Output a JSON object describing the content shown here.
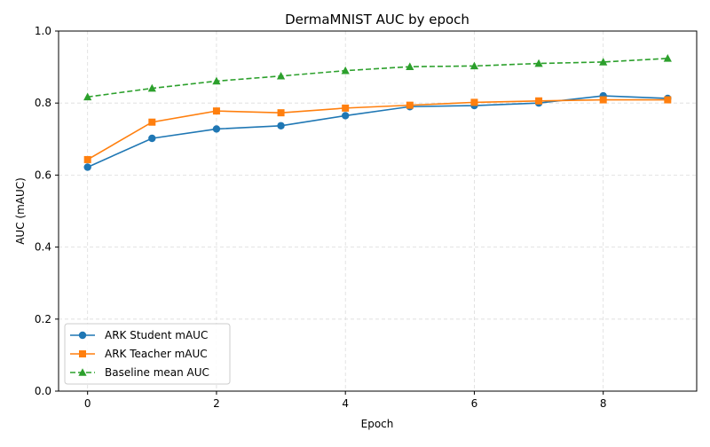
{
  "chart_data": {
    "type": "line",
    "title": "DermaMNIST AUC by epoch",
    "xlabel": "Epoch",
    "ylabel": "AUC (mAUC)",
    "x": [
      0,
      1,
      2,
      3,
      4,
      5,
      6,
      7,
      8,
      9
    ],
    "xlim": [
      -0.45,
      9.45
    ],
    "ylim": [
      0.0,
      1.0
    ],
    "xticks": [
      0,
      2,
      4,
      6,
      8
    ],
    "yticks": [
      0.0,
      0.2,
      0.4,
      0.6,
      0.8,
      1.0
    ],
    "xtick_labels": [
      "0",
      "2",
      "4",
      "6",
      "8"
    ],
    "ytick_labels": [
      "0.0",
      "0.2",
      "0.4",
      "0.6",
      "0.8",
      "1.0"
    ],
    "grid": true,
    "legend_position": "lower-left",
    "series": [
      {
        "name": "ARK Student mAUC",
        "color": "#1f77b4",
        "marker": "circle",
        "line_style": "solid",
        "values": [
          0.622,
          0.702,
          0.728,
          0.737,
          0.765,
          0.79,
          0.793,
          0.8,
          0.82,
          0.813
        ]
      },
      {
        "name": "ARK Teacher mAUC",
        "color": "#ff7f0e",
        "marker": "square",
        "line_style": "solid",
        "values": [
          0.643,
          0.747,
          0.778,
          0.773,
          0.786,
          0.794,
          0.802,
          0.806,
          0.809,
          0.809
        ]
      },
      {
        "name": "Baseline mean AUC",
        "color": "#2ca02c",
        "marker": "triangle",
        "line_style": "dashed",
        "values": [
          0.817,
          0.841,
          0.861,
          0.875,
          0.89,
          0.901,
          0.903,
          0.91,
          0.914,
          0.924
        ]
      }
    ]
  }
}
